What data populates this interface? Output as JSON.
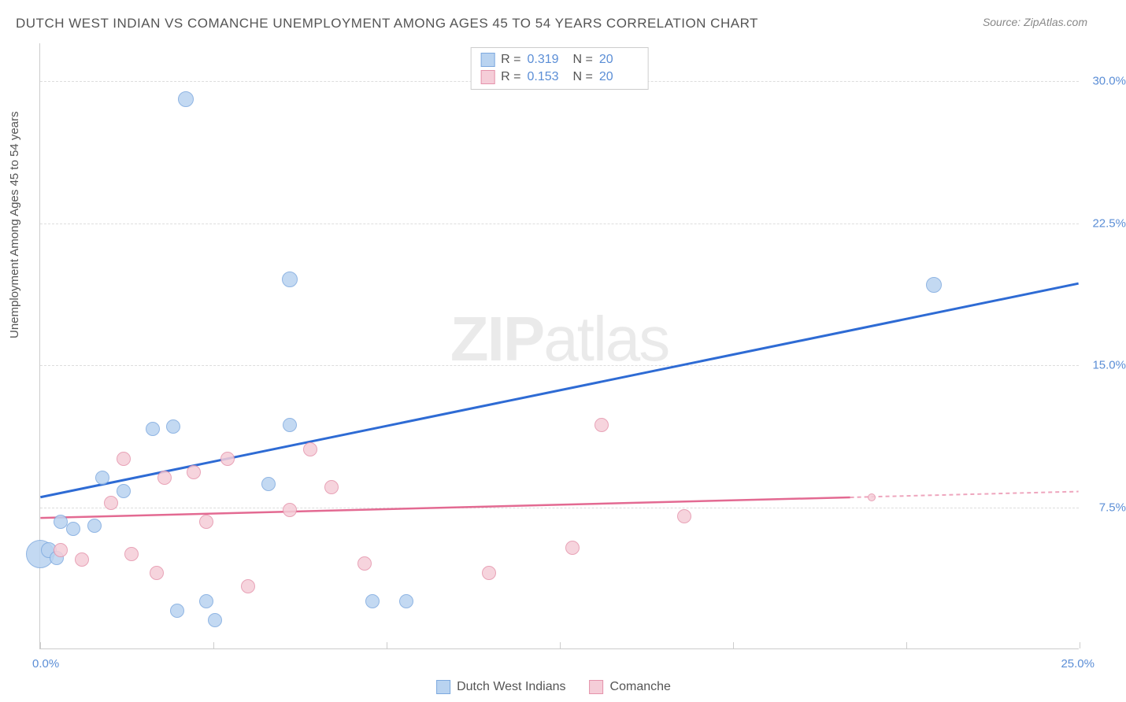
{
  "title": "DUTCH WEST INDIAN VS COMANCHE UNEMPLOYMENT AMONG AGES 45 TO 54 YEARS CORRELATION CHART",
  "source": "Source: ZipAtlas.com",
  "watermark": "ZIPatlas",
  "y_axis_label": "Unemployment Among Ages 45 to 54 years",
  "chart": {
    "type": "scatter",
    "x_min": 0,
    "x_max": 25,
    "y_min": 0,
    "y_max": 32,
    "y_gridlines": [
      7.5,
      15.0,
      22.5,
      30.0
    ],
    "y_tick_labels": [
      "7.5%",
      "15.0%",
      "22.5%",
      "30.0%"
    ],
    "x_tick_0": "0.0%",
    "x_tick_25": "25.0%",
    "x_minor_ticks": [
      0,
      4.17,
      8.33,
      12.5,
      16.67,
      20.83,
      25
    ],
    "background_color": "#ffffff",
    "grid_color": "#dddddd",
    "axis_color": "#cccccc",
    "tick_label_color": "#5b8ed6"
  },
  "series": [
    {
      "name": "Dutch West Indians",
      "color_fill": "#b9d3f0",
      "color_stroke": "#7da9df",
      "line_color": "#2e6bd4",
      "r_value": "0.319",
      "n_value": "20",
      "trend": {
        "x1": 0,
        "y1": 8.0,
        "x2": 25,
        "y2": 19.3
      },
      "points": [
        {
          "x": 0.0,
          "y": 5.0,
          "r": 18
        },
        {
          "x": 0.2,
          "y": 5.2,
          "r": 10
        },
        {
          "x": 0.4,
          "y": 4.8,
          "r": 9
        },
        {
          "x": 0.5,
          "y": 6.7,
          "r": 9
        },
        {
          "x": 0.8,
          "y": 6.3,
          "r": 9
        },
        {
          "x": 1.3,
          "y": 6.5,
          "r": 9
        },
        {
          "x": 1.5,
          "y": 9.0,
          "r": 9
        },
        {
          "x": 2.0,
          "y": 8.3,
          "r": 9
        },
        {
          "x": 2.7,
          "y": 11.6,
          "r": 9
        },
        {
          "x": 3.2,
          "y": 11.7,
          "r": 9
        },
        {
          "x": 3.3,
          "y": 2.0,
          "r": 9
        },
        {
          "x": 3.5,
          "y": 29.0,
          "r": 10
        },
        {
          "x": 4.0,
          "y": 2.5,
          "r": 9
        },
        {
          "x": 4.2,
          "y": 1.5,
          "r": 9
        },
        {
          "x": 5.5,
          "y": 8.7,
          "r": 9
        },
        {
          "x": 6.0,
          "y": 11.8,
          "r": 9
        },
        {
          "x": 6.0,
          "y": 19.5,
          "r": 10
        },
        {
          "x": 8.0,
          "y": 2.5,
          "r": 9
        },
        {
          "x": 8.8,
          "y": 2.5,
          "r": 9
        },
        {
          "x": 21.5,
          "y": 19.2,
          "r": 10
        }
      ]
    },
    {
      "name": "Comanche",
      "color_fill": "#f5cdd8",
      "color_stroke": "#e593ab",
      "line_color": "#e36a92",
      "r_value": "0.153",
      "n_value": "20",
      "trend": {
        "x1": 0,
        "y1": 6.9,
        "x2": 25,
        "y2": 8.3
      },
      "trend_dash_from_x": 19.5,
      "points": [
        {
          "x": 0.5,
          "y": 5.2,
          "r": 9
        },
        {
          "x": 1.0,
          "y": 4.7,
          "r": 9
        },
        {
          "x": 1.7,
          "y": 7.7,
          "r": 9
        },
        {
          "x": 2.0,
          "y": 10.0,
          "r": 9
        },
        {
          "x": 2.2,
          "y": 5.0,
          "r": 9
        },
        {
          "x": 2.8,
          "y": 4.0,
          "r": 9
        },
        {
          "x": 3.0,
          "y": 9.0,
          "r": 9
        },
        {
          "x": 3.7,
          "y": 9.3,
          "r": 9
        },
        {
          "x": 4.0,
          "y": 6.7,
          "r": 9
        },
        {
          "x": 4.5,
          "y": 10.0,
          "r": 9
        },
        {
          "x": 5.0,
          "y": 3.3,
          "r": 9
        },
        {
          "x": 6.0,
          "y": 7.3,
          "r": 9
        },
        {
          "x": 6.5,
          "y": 10.5,
          "r": 9
        },
        {
          "x": 7.0,
          "y": 8.5,
          "r": 9
        },
        {
          "x": 7.8,
          "y": 4.5,
          "r": 9
        },
        {
          "x": 10.8,
          "y": 4.0,
          "r": 9
        },
        {
          "x": 12.8,
          "y": 5.3,
          "r": 9
        },
        {
          "x": 13.5,
          "y": 11.8,
          "r": 9
        },
        {
          "x": 15.5,
          "y": 7.0,
          "r": 9
        },
        {
          "x": 20.0,
          "y": 8.0,
          "r": 5
        }
      ]
    }
  ],
  "legend_top": {
    "r_label": "R =",
    "n_label": "N ="
  },
  "legend_bottom": [
    {
      "label": "Dutch West Indians",
      "fill": "#b9d3f0",
      "stroke": "#7da9df"
    },
    {
      "label": "Comanche",
      "fill": "#f5cdd8",
      "stroke": "#e593ab"
    }
  ]
}
